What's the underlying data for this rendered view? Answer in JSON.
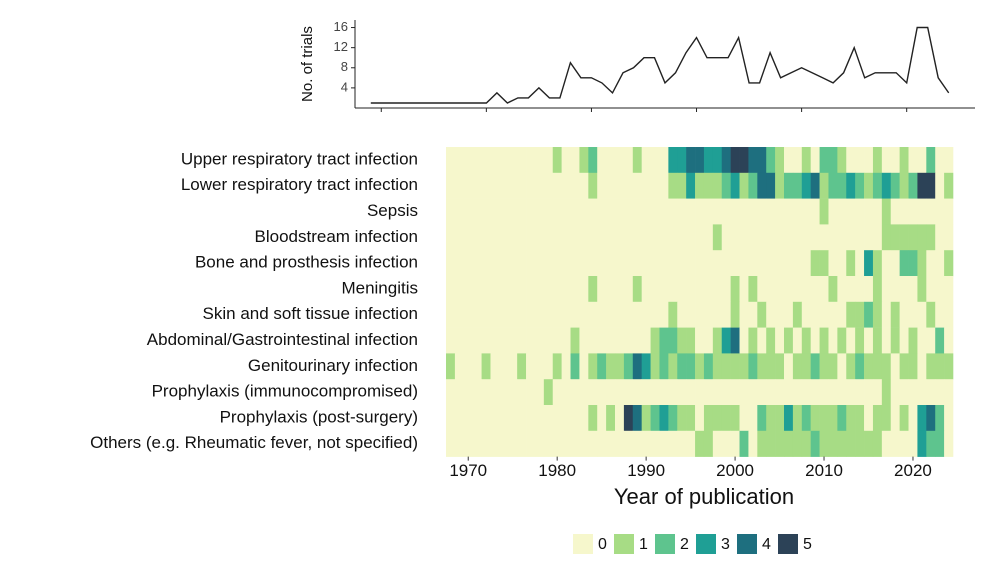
{
  "chart_data": [
    {
      "type": "line",
      "y_label": "No. of trials",
      "color": "#222222",
      "x": [
        1969,
        1970,
        1971,
        1972,
        1973,
        1974,
        1975,
        1976,
        1977,
        1978,
        1979,
        1980,
        1981,
        1982,
        1983,
        1984,
        1985,
        1986,
        1987,
        1988,
        1989,
        1990,
        1991,
        1992,
        1993,
        1994,
        1995,
        1996,
        1997,
        1998,
        1999,
        2000,
        2001,
        2002,
        2003,
        2004,
        2005,
        2006,
        2007,
        2008,
        2009,
        2010,
        2011,
        2012,
        2013,
        2014,
        2015,
        2016,
        2017,
        2018,
        2019,
        2020,
        2021,
        2022,
        2023,
        2024
      ],
      "values": [
        1,
        1,
        1,
        1,
        1,
        1,
        1,
        1,
        1,
        1,
        1,
        1,
        3,
        1,
        2,
        2,
        4,
        2,
        2,
        9,
        6,
        6,
        5,
        3,
        7,
        8,
        10,
        10,
        5,
        7,
        11,
        14,
        10,
        10,
        10,
        14,
        5,
        5,
        11,
        6,
        7,
        8,
        7,
        6,
        5,
        7,
        12,
        6,
        7,
        7,
        7,
        5,
        16,
        16,
        6,
        3
      ],
      "xlim": [
        1967.5,
        2026.5
      ],
      "xticks": [
        1970,
        1980,
        1990,
        2000,
        2010,
        2020
      ],
      "ylim": [
        0,
        17.5
      ],
      "yticks": [
        4,
        8,
        12,
        16
      ]
    },
    {
      "type": "heatmap",
      "x_label": "Year of publication",
      "x": [
        1968,
        1969,
        1970,
        1971,
        1972,
        1973,
        1974,
        1975,
        1976,
        1977,
        1978,
        1979,
        1980,
        1981,
        1982,
        1983,
        1984,
        1985,
        1986,
        1987,
        1988,
        1989,
        1990,
        1991,
        1992,
        1993,
        1994,
        1995,
        1996,
        1997,
        1998,
        1999,
        2000,
        2001,
        2002,
        2003,
        2004,
        2005,
        2006,
        2007,
        2008,
        2009,
        2010,
        2011,
        2012,
        2013,
        2014,
        2015,
        2016,
        2017,
        2018,
        2019,
        2020,
        2021,
        2022,
        2023,
        2024
      ],
      "xlim": [
        1967.5,
        2024.5
      ],
      "xticks": [
        1970,
        1980,
        1990,
        2000,
        2010,
        2020
      ],
      "series": [
        {
          "name": "Upper respiratory tract infection",
          "values": [
            0,
            0,
            0,
            0,
            0,
            0,
            0,
            0,
            0,
            0,
            0,
            0,
            1,
            0,
            0,
            1,
            2,
            0,
            0,
            0,
            0,
            1,
            0,
            0,
            0,
            3,
            3,
            4,
            4,
            3,
            3,
            4,
            5,
            5,
            4,
            4,
            2,
            1,
            0,
            0,
            1,
            0,
            2,
            2,
            1,
            0,
            0,
            0,
            1,
            0,
            0,
            1,
            0,
            0,
            2,
            0,
            0
          ]
        },
        {
          "name": "Lower respiratory tract infection",
          "values": [
            0,
            0,
            0,
            0,
            0,
            0,
            0,
            0,
            0,
            0,
            0,
            0,
            0,
            0,
            0,
            0,
            1,
            0,
            0,
            0,
            0,
            0,
            0,
            0,
            0,
            1,
            1,
            3,
            1,
            1,
            1,
            2,
            3,
            1,
            2,
            4,
            4,
            1,
            2,
            2,
            3,
            4,
            1,
            2,
            2,
            3,
            2,
            1,
            2,
            3,
            2,
            1,
            2,
            5,
            5,
            0,
            1
          ]
        },
        {
          "name": "Sepsis",
          "values": [
            0,
            0,
            0,
            0,
            0,
            0,
            0,
            0,
            0,
            0,
            0,
            0,
            0,
            0,
            0,
            0,
            0,
            0,
            0,
            0,
            0,
            0,
            0,
            0,
            0,
            0,
            0,
            0,
            0,
            0,
            0,
            0,
            0,
            0,
            0,
            0,
            0,
            0,
            0,
            0,
            0,
            0,
            1,
            0,
            0,
            0,
            0,
            0,
            0,
            1,
            0,
            0,
            0,
            0,
            0,
            0,
            0
          ]
        },
        {
          "name": "Bloodstream infection",
          "values": [
            0,
            0,
            0,
            0,
            0,
            0,
            0,
            0,
            0,
            0,
            0,
            0,
            0,
            0,
            0,
            0,
            0,
            0,
            0,
            0,
            0,
            0,
            0,
            0,
            0,
            0,
            0,
            0,
            0,
            0,
            1,
            0,
            0,
            0,
            0,
            0,
            0,
            0,
            0,
            0,
            0,
            0,
            0,
            0,
            0,
            0,
            0,
            0,
            0,
            1,
            1,
            1,
            1,
            1,
            1,
            0,
            0
          ]
        },
        {
          "name": "Bone and prosthesis infection",
          "values": [
            0,
            0,
            0,
            0,
            0,
            0,
            0,
            0,
            0,
            0,
            0,
            0,
            0,
            0,
            0,
            0,
            0,
            0,
            0,
            0,
            0,
            0,
            0,
            0,
            0,
            0,
            0,
            0,
            0,
            0,
            0,
            0,
            0,
            0,
            0,
            0,
            0,
            0,
            0,
            0,
            0,
            1,
            1,
            0,
            0,
            1,
            0,
            3,
            1,
            0,
            0,
            2,
            2,
            1,
            0,
            0,
            1
          ]
        },
        {
          "name": "Meningitis",
          "values": [
            0,
            0,
            0,
            0,
            0,
            0,
            0,
            0,
            0,
            0,
            0,
            0,
            0,
            0,
            0,
            0,
            1,
            0,
            0,
            0,
            0,
            1,
            0,
            0,
            0,
            0,
            0,
            0,
            0,
            0,
            0,
            0,
            1,
            0,
            1,
            0,
            0,
            0,
            0,
            0,
            0,
            0,
            0,
            1,
            0,
            0,
            0,
            0,
            1,
            0,
            0,
            0,
            0,
            1,
            0,
            0,
            0
          ]
        },
        {
          "name": "Skin and soft tissue infection",
          "values": [
            0,
            0,
            0,
            0,
            0,
            0,
            0,
            0,
            0,
            0,
            0,
            0,
            0,
            0,
            0,
            0,
            0,
            0,
            0,
            0,
            0,
            0,
            0,
            0,
            0,
            1,
            0,
            0,
            0,
            0,
            0,
            0,
            1,
            0,
            0,
            1,
            0,
            0,
            0,
            1,
            0,
            0,
            0,
            0,
            0,
            1,
            1,
            2,
            1,
            0,
            1,
            0,
            0,
            0,
            1,
            0,
            0
          ]
        },
        {
          "name": "Abdominal/Gastrointestinal infection",
          "values": [
            0,
            0,
            0,
            0,
            0,
            0,
            0,
            0,
            0,
            0,
            0,
            0,
            0,
            0,
            1,
            0,
            0,
            0,
            0,
            0,
            0,
            0,
            0,
            1,
            2,
            2,
            1,
            1,
            0,
            0,
            1,
            3,
            4,
            0,
            1,
            0,
            1,
            0,
            1,
            0,
            1,
            0,
            1,
            0,
            1,
            0,
            1,
            0,
            1,
            0,
            1,
            0,
            1,
            0,
            0,
            2,
            0
          ]
        },
        {
          "name": "Genitourinary infection",
          "values": [
            1,
            0,
            0,
            0,
            1,
            0,
            0,
            0,
            1,
            0,
            0,
            0,
            1,
            0,
            2,
            0,
            1,
            2,
            1,
            1,
            2,
            4,
            3,
            1,
            2,
            1,
            2,
            2,
            1,
            2,
            1,
            1,
            1,
            1,
            2,
            1,
            1,
            1,
            0,
            1,
            1,
            2,
            1,
            1,
            0,
            1,
            2,
            1,
            1,
            1,
            0,
            1,
            1,
            0,
            1,
            1,
            1
          ]
        },
        {
          "name": "Prophylaxis (immunocompromised)",
          "values": [
            0,
            0,
            0,
            0,
            0,
            0,
            0,
            0,
            0,
            0,
            0,
            1,
            0,
            0,
            0,
            0,
            0,
            0,
            0,
            0,
            0,
            0,
            0,
            0,
            0,
            0,
            0,
            0,
            0,
            0,
            0,
            0,
            0,
            0,
            0,
            0,
            0,
            0,
            0,
            0,
            0,
            0,
            0,
            0,
            0,
            0,
            0,
            0,
            0,
            1,
            0,
            0,
            0,
            0,
            0,
            0,
            0
          ]
        },
        {
          "name": "Prophylaxis (post-surgery)",
          "values": [
            0,
            0,
            0,
            0,
            0,
            0,
            0,
            0,
            0,
            0,
            0,
            0,
            0,
            0,
            0,
            0,
            1,
            0,
            1,
            0,
            5,
            4,
            1,
            2,
            3,
            2,
            1,
            1,
            0,
            1,
            1,
            1,
            1,
            0,
            0,
            2,
            1,
            1,
            3,
            1,
            2,
            1,
            1,
            1,
            2,
            1,
            1,
            0,
            1,
            1,
            0,
            1,
            0,
            3,
            4,
            2,
            0
          ]
        },
        {
          "name": "Others (e.g. Rheumatic fever, not specified)",
          "values": [
            0,
            0,
            0,
            0,
            0,
            0,
            0,
            0,
            0,
            0,
            0,
            0,
            0,
            0,
            0,
            0,
            0,
            0,
            0,
            0,
            0,
            0,
            0,
            0,
            0,
            0,
            0,
            0,
            1,
            1,
            0,
            0,
            0,
            2,
            0,
            1,
            1,
            1,
            1,
            1,
            1,
            2,
            1,
            1,
            1,
            1,
            1,
            1,
            1,
            0,
            0,
            0,
            0,
            3,
            2,
            2,
            0
          ]
        }
      ],
      "legend": {
        "levels": [
          0,
          1,
          2,
          3,
          4,
          5
        ],
        "colors": [
          "#f6f7cc",
          "#a7dc85",
          "#5ec48e",
          "#1f9f95",
          "#1e6f7f",
          "#2c4257"
        ]
      }
    }
  ]
}
